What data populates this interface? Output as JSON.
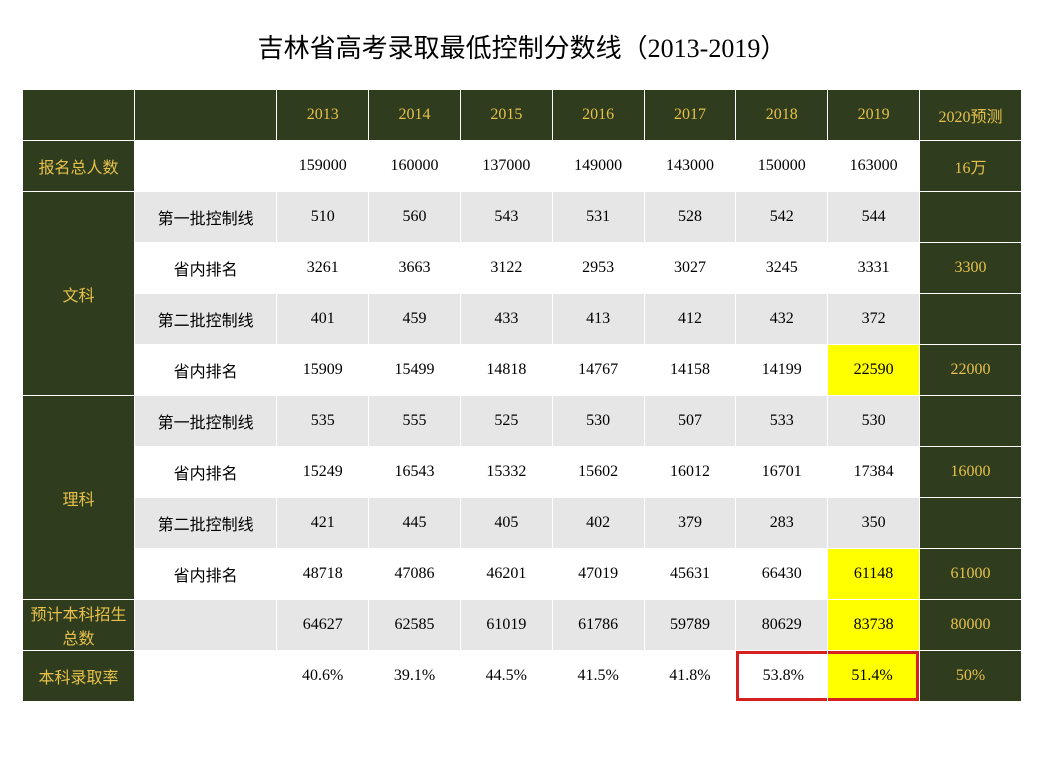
{
  "title": "吉林省高考录取最低控制分数线（2013-2019）",
  "years": [
    "2013",
    "2014",
    "2015",
    "2016",
    "2017",
    "2018",
    "2019"
  ],
  "pred_header": "2020预测",
  "row_labels": {
    "total": "报名总人数",
    "wen": "文科",
    "li": "理科",
    "benke_total": "预计本科招生总数",
    "luqu": "本科录取率"
  },
  "sub_labels": {
    "tier1": "第一批控制线",
    "rank": "省内排名",
    "tier2": "第二批控制线"
  },
  "total_row": {
    "vals": [
      "159000",
      "160000",
      "137000",
      "149000",
      "143000",
      "150000",
      "163000"
    ],
    "pred": "16万"
  },
  "wen": {
    "tier1": {
      "vals": [
        "510",
        "560",
        "543",
        "531",
        "528",
        "542",
        "544"
      ],
      "pred": ""
    },
    "rank1": {
      "vals": [
        "3261",
        "3663",
        "3122",
        "2953",
        "3027",
        "3245",
        "3331"
      ],
      "pred": "3300"
    },
    "tier2": {
      "vals": [
        "401",
        "459",
        "433",
        "413",
        "412",
        "432",
        "372"
      ],
      "pred": ""
    },
    "rank2": {
      "vals": [
        "15909",
        "15499",
        "14818",
        "14767",
        "14158",
        "14199",
        "22590"
      ],
      "pred": "22000",
      "highlight_idx": 6
    }
  },
  "li": {
    "tier1": {
      "vals": [
        "535",
        "555",
        "525",
        "530",
        "507",
        "533",
        "530"
      ],
      "pred": ""
    },
    "rank1": {
      "vals": [
        "15249",
        "16543",
        "15332",
        "15602",
        "16012",
        "16701",
        "17384"
      ],
      "pred": "16000"
    },
    "tier2": {
      "vals": [
        "421",
        "445",
        "405",
        "402",
        "379",
        "283",
        "350"
      ],
      "pred": ""
    },
    "rank2": {
      "vals": [
        "48718",
        "47086",
        "46201",
        "47019",
        "45631",
        "66430",
        "61148"
      ],
      "pred": "61000",
      "highlight_idx": 6
    }
  },
  "benke_total": {
    "vals": [
      "64627",
      "62585",
      "61019",
      "61786",
      "59789",
      "80629",
      "83738"
    ],
    "pred": "80000",
    "highlight_idx": 6
  },
  "luqu": {
    "vals": [
      "40.6%",
      "39.1%",
      "44.5%",
      "41.5%",
      "41.8%",
      "53.8%",
      "51.4%"
    ],
    "pred": "50%",
    "redbox_start": 5,
    "redbox_end": 6,
    "highlight_idx": 6
  },
  "colors": {
    "dark_bg": "#2f3d1e",
    "gold": "#e6c04b",
    "gray": "#e6e6e6",
    "white": "#ffffff",
    "yellow": "#ffff00",
    "red": "#d62020",
    "border": "#ffffff"
  },
  "fonts": {
    "title_size": 26,
    "cell_size": 16,
    "family": "SimSun"
  }
}
